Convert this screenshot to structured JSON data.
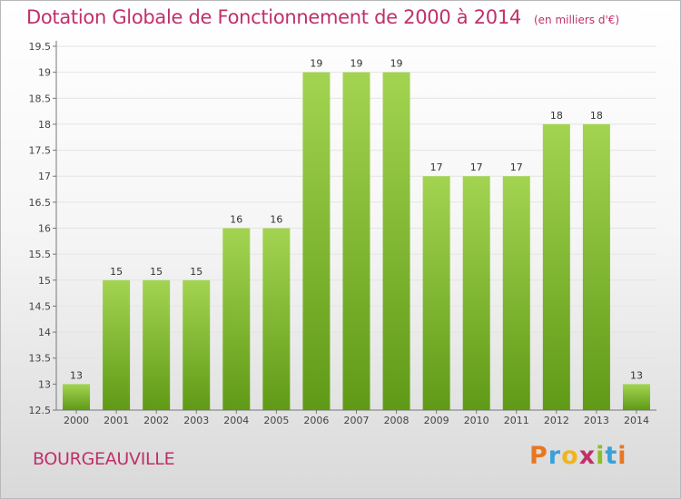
{
  "header": {
    "title": "Dotation Globale de Fonctionnement de 2000 à 2014",
    "unit": "(en milliers d'€)"
  },
  "commune": "BOURGEAUVILLE",
  "logo": {
    "text": "Proxiti",
    "letter_colors": [
      "#e8771f",
      "#3aa0d8",
      "#f1b51c",
      "#c0306a",
      "#8cbf26",
      "#3aa0d8",
      "#e8771f"
    ]
  },
  "colors": {
    "bar_top": "#a3d451",
    "bar_bottom": "#5f9a16",
    "title": "#c0306a",
    "grid": "#e4e4e4",
    "axis": "#777777"
  },
  "chart_data": {
    "type": "bar",
    "title": "Dotation Globale de Fonctionnement de 2000 à 2014",
    "unit": "(en milliers d'€)",
    "categories": [
      "2000",
      "2001",
      "2002",
      "2003",
      "2004",
      "2005",
      "2006",
      "2007",
      "2008",
      "2009",
      "2010",
      "2011",
      "2012",
      "2013",
      "2014"
    ],
    "values": [
      13,
      15,
      15,
      15,
      16,
      16,
      19,
      19,
      19,
      17,
      17,
      17,
      18,
      18,
      13
    ],
    "data_labels": [
      "13",
      "15",
      "15",
      "15",
      "16",
      "16",
      "19",
      "19",
      "19",
      "17",
      "17",
      "17",
      "18",
      "18",
      "13"
    ],
    "ylim": [
      12.5,
      19.5
    ],
    "yticks": [
      "12.5",
      "13",
      "13.5",
      "14",
      "14.5",
      "15",
      "15.5",
      "16",
      "16.5",
      "17",
      "17.5",
      "18",
      "18.5",
      "19",
      "19.5"
    ],
    "grid": true,
    "legend": false
  }
}
